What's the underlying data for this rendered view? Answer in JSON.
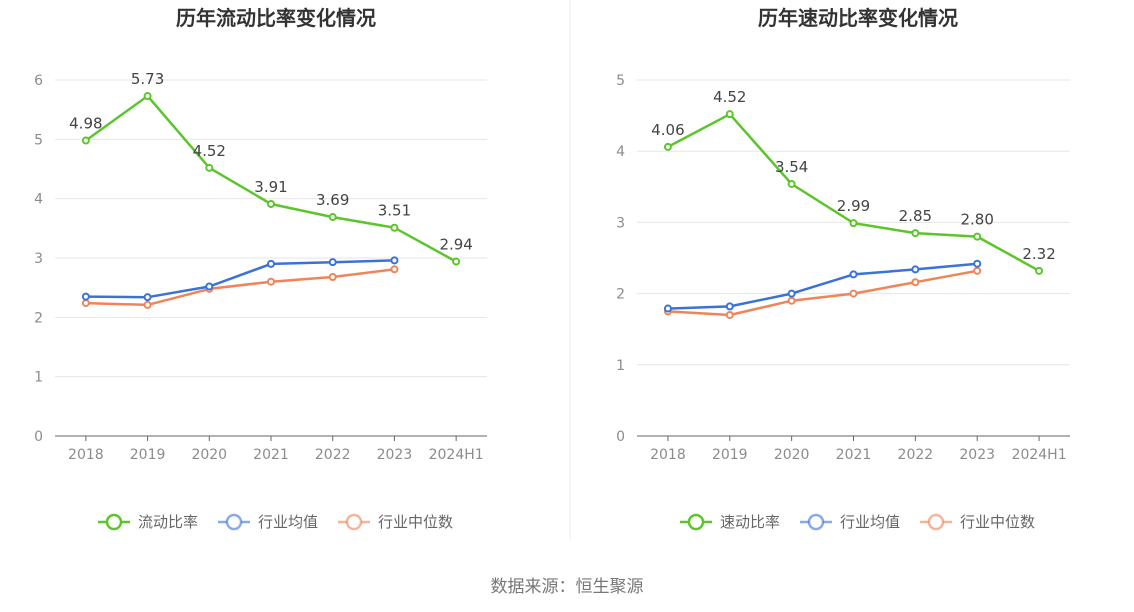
{
  "source": "数据来源：恒生聚源",
  "colors": {
    "main": "#5cc52c",
    "avg": "#3a72d8",
    "median": "#f08458"
  },
  "chart_data": [
    {
      "type": "line",
      "title": "历年流动比率变化情况",
      "categories": [
        "2018",
        "2019",
        "2020",
        "2021",
        "2022",
        "2023",
        "2024H1"
      ],
      "ylim": [
        0,
        6
      ],
      "yticks": [
        "0",
        "1",
        "2",
        "3",
        "4",
        "5",
        "6"
      ],
      "grid": true,
      "legend_position": "bottom",
      "series": [
        {
          "name": "流动比率",
          "values": [
            4.98,
            5.73,
            4.52,
            3.91,
            3.69,
            3.51,
            2.94
          ],
          "labels": [
            "4.98",
            "5.73",
            "4.52",
            "3.91",
            "3.69",
            "3.51",
            "2.94"
          ]
        },
        {
          "name": "行业均值",
          "values": [
            2.35,
            2.34,
            2.52,
            2.9,
            2.93,
            2.96,
            null
          ]
        },
        {
          "name": "行业中位数",
          "values": [
            2.24,
            2.21,
            2.48,
            2.6,
            2.68,
            2.81,
            null
          ]
        }
      ]
    },
    {
      "type": "line",
      "title": "历年速动比率变化情况",
      "categories": [
        "2018",
        "2019",
        "2020",
        "2021",
        "2022",
        "2023",
        "2024H1"
      ],
      "ylim": [
        0,
        5
      ],
      "yticks": [
        "0",
        "1",
        "2",
        "3",
        "4",
        "5"
      ],
      "grid": true,
      "legend_position": "bottom",
      "series": [
        {
          "name": "速动比率",
          "values": [
            4.06,
            4.52,
            3.54,
            2.99,
            2.85,
            2.8,
            2.32
          ],
          "labels": [
            "4.06",
            "4.52",
            "3.54",
            "2.99",
            "2.85",
            "2.80",
            "2.32"
          ]
        },
        {
          "name": "行业均值",
          "values": [
            1.79,
            1.82,
            2.0,
            2.27,
            2.34,
            2.42,
            null
          ]
        },
        {
          "name": "行业中位数",
          "values": [
            1.75,
            1.7,
            1.9,
            2.0,
            2.16,
            2.32,
            null
          ]
        }
      ]
    }
  ]
}
